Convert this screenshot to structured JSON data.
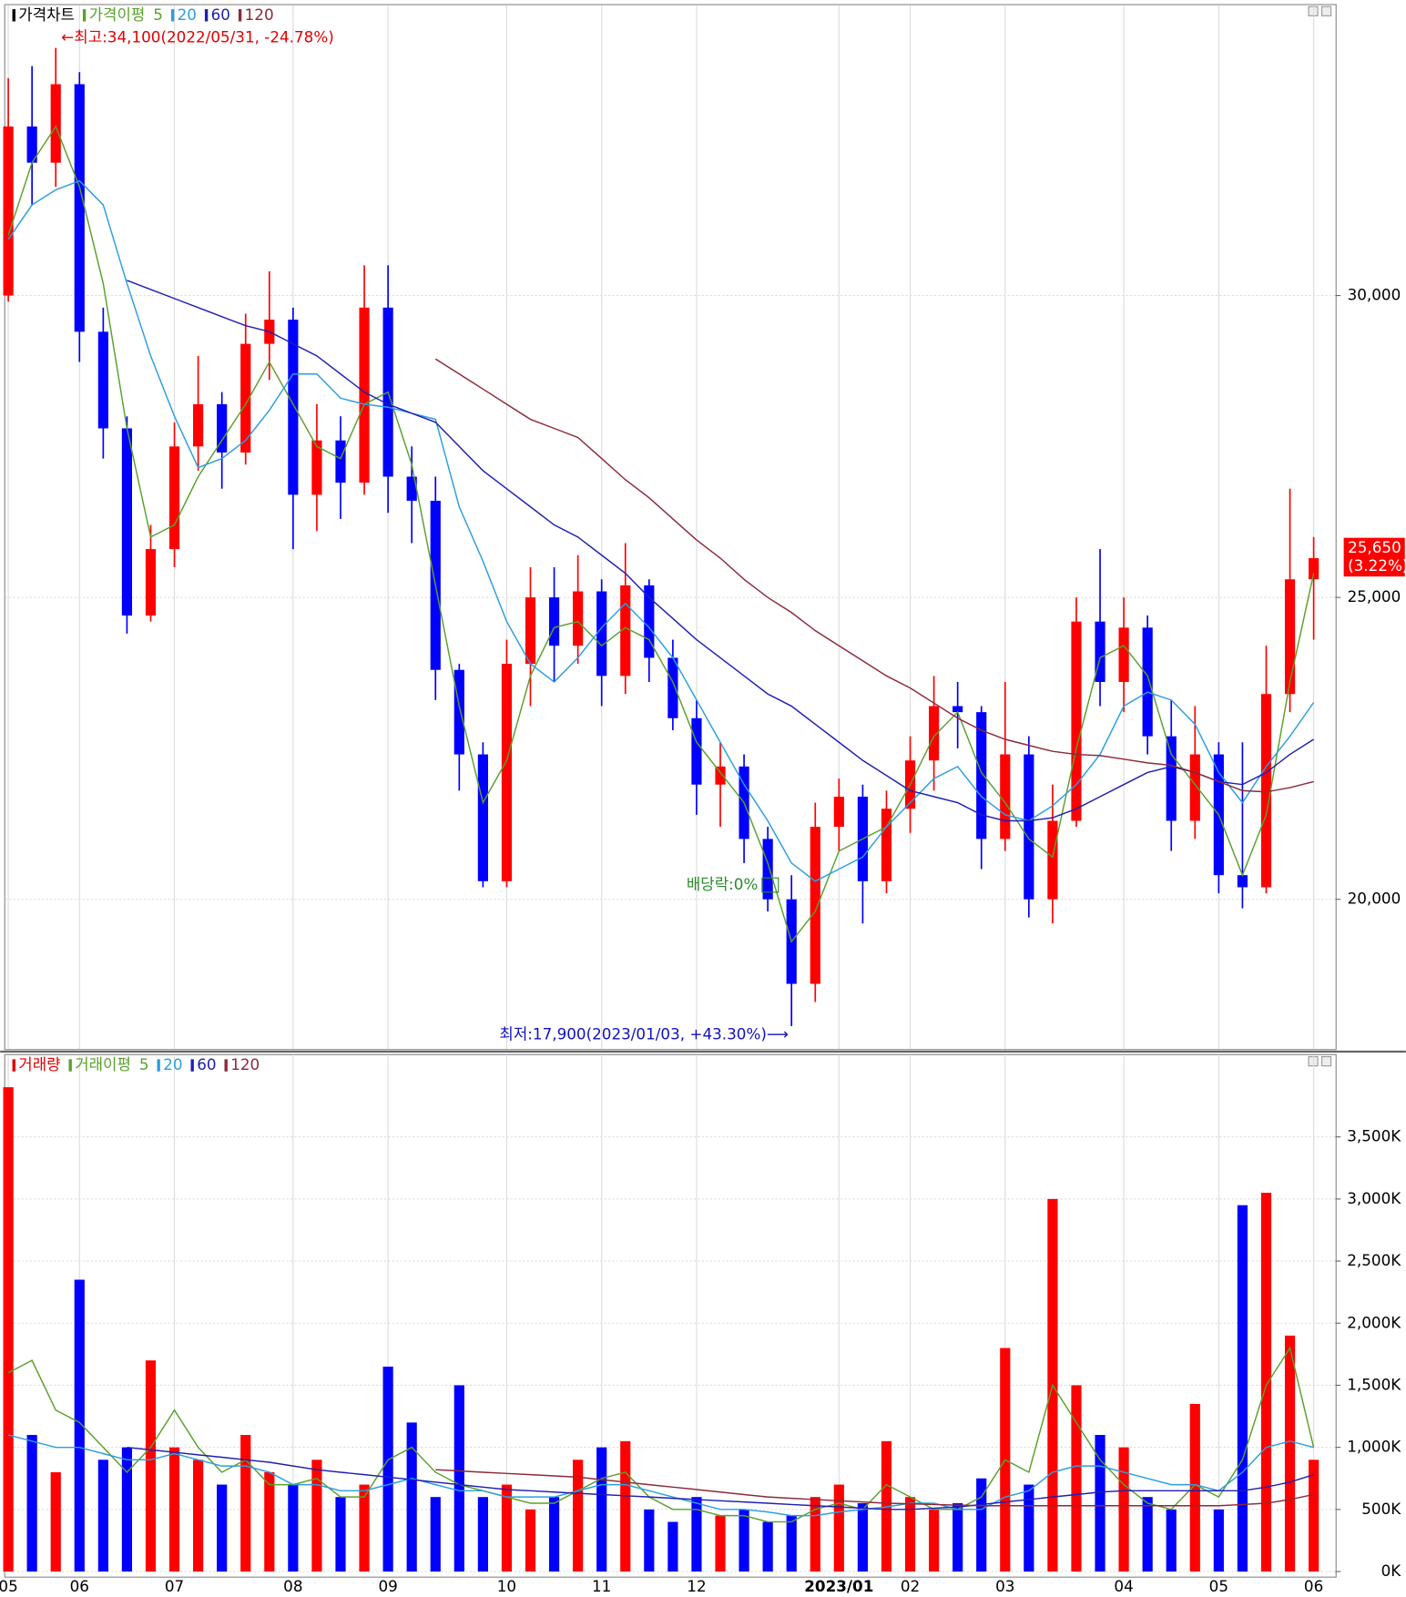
{
  "chart_data": [
    {
      "type": "candlestick",
      "legend_title": "가격차트",
      "legend_color": "#000000",
      "ma_title": "가격이평",
      "up_color": "#ff0000",
      "down_color": "#0000ff",
      "open": [
        30000,
        32800,
        32200,
        33500,
        29400,
        27800,
        24700,
        25800,
        27500,
        28200,
        27400,
        29200,
        29600,
        26700,
        27600,
        26900,
        29800,
        27000,
        26600,
        23800,
        22400,
        20300,
        23900,
        25000,
        24200,
        25100,
        23700,
        25200,
        24000,
        23000,
        21900,
        22200,
        21000,
        20000,
        18600,
        21200,
        21700,
        20300,
        21500,
        22300,
        23200,
        23100,
        21000,
        22400,
        20000,
        21300,
        24600,
        23600,
        24500,
        22700,
        21300,
        22400,
        20400,
        20200,
        23400,
        25300
      ],
      "high": [
        33600,
        33800,
        34100,
        33700,
        29800,
        28000,
        26200,
        27900,
        29000,
        28400,
        29700,
        30400,
        29800,
        28200,
        28000,
        30500,
        30500,
        27500,
        27000,
        23900,
        22600,
        24300,
        25500,
        25500,
        25700,
        25300,
        25900,
        25300,
        24300,
        23300,
        22600,
        22400,
        21200,
        20400,
        21600,
        22000,
        21900,
        21800,
        22700,
        23700,
        23600,
        23200,
        23600,
        22700,
        21900,
        25000,
        25800,
        25000,
        24700,
        23300,
        23200,
        22600,
        22600,
        24200,
        26800,
        26000
      ],
      "low": [
        29900,
        31500,
        31800,
        28900,
        27300,
        24400,
        24600,
        25500,
        27100,
        26800,
        27200,
        28600,
        25800,
        26100,
        26300,
        26700,
        26400,
        25900,
        23300,
        21800,
        20200,
        20200,
        23200,
        23600,
        23900,
        23200,
        23400,
        23600,
        22800,
        21400,
        21200,
        20600,
        19800,
        17900,
        18300,
        20800,
        19600,
        20100,
        21100,
        21800,
        22500,
        20500,
        20800,
        19700,
        19600,
        21200,
        23200,
        23100,
        22400,
        20800,
        21000,
        20100,
        19850,
        20100,
        23100,
        24300
      ],
      "close": [
        32800,
        32200,
        33500,
        29400,
        27800,
        24700,
        25800,
        27500,
        28200,
        27400,
        29200,
        29600,
        26700,
        27600,
        26900,
        29800,
        27000,
        26600,
        23800,
        22400,
        20300,
        23900,
        25000,
        24200,
        25100,
        23700,
        25200,
        24000,
        23000,
        21900,
        22200,
        21000,
        20000,
        18600,
        21200,
        21700,
        20300,
        21500,
        22300,
        23200,
        23100,
        21000,
        22400,
        20000,
        21300,
        24600,
        23600,
        24500,
        22700,
        21300,
        22400,
        20400,
        20200,
        23400,
        25300,
        25650
      ],
      "series": [
        {
          "name": "5",
          "color": "#5aa02c",
          "values": [
            31000,
            32200,
            32800,
            31800,
            30200,
            27800,
            26000,
            26200,
            27000,
            27600,
            28200,
            28900,
            28200,
            27500,
            27300,
            28200,
            28400,
            27200,
            25200,
            23200,
            21600,
            22300,
            23700,
            24500,
            24600,
            24200,
            24500,
            24300,
            23600,
            22600,
            22100,
            21600,
            20600,
            19300,
            19800,
            20800,
            21000,
            21200,
            21900,
            22700,
            23100,
            22100,
            21600,
            21000,
            20700,
            22500,
            24000,
            24200,
            23700,
            22400,
            21900,
            21400,
            20400,
            21400,
            23600,
            25400
          ]
        },
        {
          "name": "20",
          "color": "#2b9ee0",
          "values": [
            30930,
            31500,
            31750,
            31900,
            31500,
            30200,
            29000,
            28000,
            27150,
            27300,
            27600,
            28100,
            28700,
            28700,
            28300,
            28200,
            28150,
            28050,
            27950,
            26500,
            25600,
            24600,
            23900,
            23600,
            24000,
            24500,
            24900,
            24500,
            24000,
            23300,
            22600,
            21900,
            21300,
            20600,
            20300,
            20500,
            20700,
            21200,
            21600,
            22000,
            22200,
            21700,
            21400,
            21300,
            21550,
            21900,
            22400,
            23200,
            23430,
            23300,
            22900,
            22100,
            21600,
            22200,
            22700,
            23260
          ]
        },
        {
          "name": "60",
          "color": "#1f1fb0",
          "values": [
            null,
            null,
            null,
            null,
            null,
            30250,
            30100,
            29950,
            29800,
            29650,
            29500,
            29400,
            29200,
            29000,
            28700,
            28400,
            28200,
            28050,
            27900,
            27500,
            27100,
            26800,
            26500,
            26200,
            26000,
            25700,
            25400,
            25000,
            24650,
            24300,
            24000,
            23700,
            23400,
            23200,
            22900,
            22600,
            22300,
            22050,
            21800,
            21700,
            21600,
            21400,
            21300,
            21300,
            21350,
            21500,
            21700,
            21900,
            22100,
            22200,
            22100,
            21950,
            21900,
            22100,
            22400,
            22650
          ]
        },
        {
          "name": "120",
          "color": "#8b2a3a",
          "values": [
            null,
            null,
            null,
            null,
            null,
            null,
            null,
            null,
            null,
            null,
            null,
            null,
            null,
            null,
            null,
            null,
            null,
            null,
            28950,
            28700,
            28450,
            28200,
            27950,
            27800,
            27650,
            27300,
            26950,
            26650,
            26300,
            25950,
            25650,
            25300,
            25000,
            24750,
            24450,
            24200,
            23950,
            23700,
            23500,
            23250,
            23000,
            22800,
            22650,
            22550,
            22450,
            22400,
            22380,
            22320,
            22260,
            22220,
            22100,
            21950,
            21800,
            21780,
            21850,
            21950
          ]
        }
      ],
      "ylim": [
        17520,
        34810
      ],
      "yticks": [
        {
          "value": 20000,
          "label": "20,000"
        },
        {
          "value": 25000,
          "label": "25,000"
        },
        {
          "value": 30000,
          "label": "30,000"
        }
      ],
      "grid": true,
      "last_label": "25,650",
      "last_change": "(3.22%)",
      "annotations": {
        "high": "←최고:34,100(2022/05/31,  -24.78%)",
        "low": "최저:17,900(2023/01/03,  +43.30%)⟶",
        "dividend": "배당락:0%"
      }
    },
    {
      "type": "bar",
      "legend_title": "거래량",
      "legend_color": "#e00000",
      "ma_title": "거래이평",
      "categories": [
        "05",
        null,
        null,
        "06",
        null,
        null,
        null,
        "07",
        null,
        null,
        null,
        null,
        "08",
        null,
        null,
        null,
        "09",
        null,
        null,
        null,
        null,
        "10",
        null,
        null,
        null,
        "11",
        null,
        null,
        null,
        "12",
        null,
        null,
        null,
        null,
        null,
        "2023/01",
        null,
        null,
        "02",
        null,
        null,
        null,
        "03",
        null,
        null,
        null,
        null,
        "04",
        null,
        null,
        null,
        "05",
        null,
        null,
        null,
        "06"
      ],
      "values": [
        3900000,
        1100000,
        800000,
        2350000,
        900000,
        1000000,
        1700000,
        1000000,
        900000,
        700000,
        1100000,
        800000,
        700000,
        900000,
        600000,
        700000,
        1650000,
        1200000,
        600000,
        1500000,
        600000,
        700000,
        500000,
        600000,
        900000,
        1000000,
        1050000,
        500000,
        400000,
        600000,
        450000,
        500000,
        400000,
        450000,
        600000,
        700000,
        550000,
        1050000,
        600000,
        500000,
        550000,
        750000,
        1800000,
        700000,
        3000000,
        1500000,
        1100000,
        1000000,
        600000,
        500000,
        1350000,
        500000,
        2950000,
        3050000,
        1900000,
        900000
      ],
      "series": [
        {
          "name": "5",
          "color": "#5aa02c",
          "values": [
            1600000,
            1700000,
            1300000,
            1200000,
            1000000,
            800000,
            1000000,
            1300000,
            1000000,
            800000,
            900000,
            700000,
            700000,
            750000,
            600000,
            600000,
            900000,
            1000000,
            800000,
            700000,
            650000,
            600000,
            550000,
            550000,
            650000,
            750000,
            800000,
            600000,
            500000,
            500000,
            450000,
            450000,
            400000,
            400000,
            500000,
            550000,
            500000,
            700000,
            600000,
            500000,
            500000,
            600000,
            900000,
            800000,
            1500000,
            1200000,
            900000,
            700000,
            550000,
            500000,
            700000,
            600000,
            900000,
            1500000,
            1800000,
            1000000
          ]
        },
        {
          "name": "20",
          "color": "#2b9ee0",
          "values": [
            1100000,
            1050000,
            1000000,
            1000000,
            950000,
            900000,
            900000,
            950000,
            900000,
            850000,
            850000,
            800000,
            700000,
            700000,
            650000,
            650000,
            700000,
            750000,
            700000,
            650000,
            650000,
            600000,
            600000,
            600000,
            650000,
            700000,
            700000,
            650000,
            600000,
            550000,
            500000,
            500000,
            480000,
            450000,
            450000,
            480000,
            500000,
            520000,
            550000,
            550000,
            500000,
            500000,
            600000,
            650000,
            800000,
            850000,
            850000,
            800000,
            750000,
            700000,
            700000,
            650000,
            800000,
            1000000,
            1050000,
            1000000
          ]
        },
        {
          "name": "60",
          "color": "#1f1fb0",
          "values": [
            null,
            null,
            null,
            null,
            null,
            1000000,
            980000,
            960000,
            940000,
            920000,
            900000,
            880000,
            850000,
            820000,
            800000,
            780000,
            760000,
            740000,
            720000,
            700000,
            680000,
            660000,
            650000,
            640000,
            630000,
            620000,
            610000,
            600000,
            590000,
            580000,
            570000,
            560000,
            550000,
            540000,
            530000,
            520000,
            510000,
            500000,
            500000,
            510000,
            520000,
            540000,
            560000,
            580000,
            600000,
            620000,
            640000,
            650000,
            650000,
            650000,
            650000,
            650000,
            650000,
            680000,
            720000,
            780000
          ]
        },
        {
          "name": "120",
          "color": "#8b2a3a",
          "values": [
            null,
            null,
            null,
            null,
            null,
            null,
            null,
            null,
            null,
            null,
            null,
            null,
            null,
            null,
            null,
            null,
            null,
            null,
            820000,
            810000,
            800000,
            790000,
            780000,
            770000,
            760000,
            740000,
            720000,
            700000,
            680000,
            660000,
            640000,
            620000,
            600000,
            590000,
            580000,
            570000,
            560000,
            550000,
            545000,
            540000,
            535000,
            530000,
            530000,
            530000,
            530000,
            530000,
            530000,
            530000,
            530000,
            530000,
            530000,
            530000,
            540000,
            550000,
            580000,
            620000
          ]
        }
      ],
      "ylim": [
        0,
        4150000
      ],
      "yticks": [
        {
          "value": 0,
          "label": "0K"
        },
        {
          "value": 500000,
          "label": "500K"
        },
        {
          "value": 1000000,
          "label": "1,000K"
        },
        {
          "value": 1500000,
          "label": "1,500K"
        },
        {
          "value": 2000000,
          "label": "2,000K"
        },
        {
          "value": 2500000,
          "label": "2,500K"
        },
        {
          "value": 3000000,
          "label": "3,000K"
        },
        {
          "value": 3500000,
          "label": "3,500K"
        }
      ],
      "grid": true
    }
  ]
}
